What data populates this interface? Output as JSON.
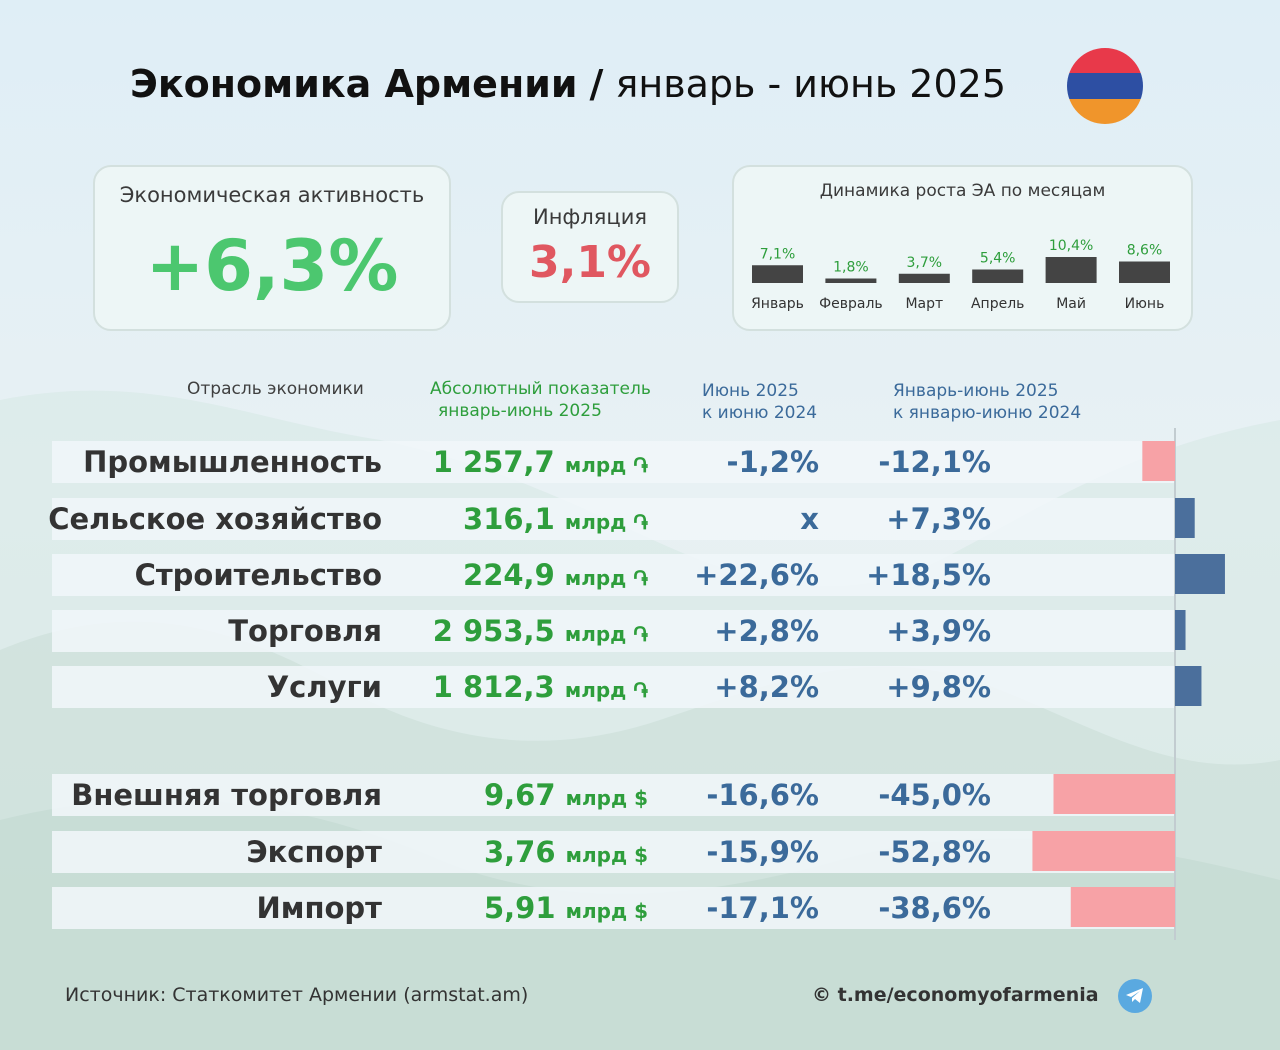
{
  "title": {
    "bold": "Экономика Армении",
    "separator": "/",
    "period": "январь - июнь 2025"
  },
  "colors": {
    "green": "#2e9e3c",
    "green_bright": "#4cc76f",
    "red": "#e05760",
    "blue": "#3b6a9a",
    "bar_positive": "#4b6f9c",
    "bar_negative": "#f7a2a6",
    "bar_monthly": "#444444",
    "flag": [
      "#e8394a",
      "#2d4fa3",
      "#f0952b"
    ]
  },
  "cards": {
    "economic_activity": {
      "label": "Экономическая активность",
      "value": "+6,3%"
    },
    "inflation": {
      "label": "Инфляция",
      "value": "3,1%"
    },
    "monthly": {
      "label": "Динамика роста ЭА по месяцам"
    }
  },
  "headers": {
    "sector": "Отрасль экономики",
    "absolute": [
      "Абсолютный показатель",
      "январь-июнь 2025"
    ],
    "june": [
      "Июнь 2025",
      "к июню 2024"
    ],
    "ytd": [
      "Январь-июнь 2025",
      "к январю-июню 2024"
    ]
  },
  "rows": [
    {
      "name": "Промышленность",
      "abs_value": "1 257,7",
      "abs_unit": "млрд ֏",
      "june": "-1,2%",
      "ytd": "-12,1%"
    },
    {
      "name": "Сельское хозяйство",
      "abs_value": "316,1",
      "abs_unit": "млрд ֏",
      "june": "х",
      "ytd": "+7,3%"
    },
    {
      "name": "Строительство",
      "abs_value": "224,9",
      "abs_unit": "млрд ֏",
      "june": "+22,6%",
      "ytd": "+18,5%"
    },
    {
      "name": "Торговля",
      "abs_value": "2 953,5",
      "abs_unit": "млрд ֏",
      "june": "+2,8%",
      "ytd": "+3,9%"
    },
    {
      "name": "Услуги",
      "abs_value": "1 812,3",
      "abs_unit": "млрд ֏",
      "june": "+8,2%",
      "ytd": "+9,8%"
    },
    {
      "name": "Внешняя торговля",
      "abs_value": "9,67",
      "abs_unit": "млрд $",
      "june": "-16,6%",
      "ytd": "-45,0%"
    },
    {
      "name": "Экспорт",
      "abs_value": "3,76",
      "abs_unit": "млрд $",
      "june": "-15,9%",
      "ytd": "-52,8%"
    },
    {
      "name": "Импорт",
      "abs_value": "5,91",
      "abs_unit": "млрд $",
      "june": "-17,1%",
      "ytd": "-38,6%"
    }
  ],
  "chart_data": [
    {
      "type": "bar",
      "title": "Динамика роста ЭА по месяцам",
      "categories": [
        "Январь",
        "Февраль",
        "Март",
        "Апрель",
        "Май",
        "Июнь"
      ],
      "values": [
        7.1,
        1.8,
        3.7,
        5.4,
        10.4,
        8.6
      ],
      "value_labels": [
        "7,1%",
        "1,8%",
        "3,7%",
        "5,4%",
        "10,4%",
        "8,6%"
      ],
      "xlabel": "",
      "ylabel": "",
      "ylim": [
        0,
        10.4
      ],
      "grid": false
    },
    {
      "type": "bar",
      "orientation": "horizontal",
      "categories": [
        "Промышленность",
        "Сельское хозяйство",
        "Строительство",
        "Торговля",
        "Услуги",
        "Внешняя торговля",
        "Экспорт",
        "Импорт"
      ],
      "values": [
        -12.1,
        7.3,
        18.5,
        3.9,
        9.8,
        -45.0,
        -52.8,
        -38.6
      ],
      "xlabel": "",
      "ylabel": "",
      "grid": false
    }
  ],
  "footer": {
    "source": "Источник: Статкомитет Армении (armstat.am)",
    "link": "© t.me/economyofarmenia"
  }
}
